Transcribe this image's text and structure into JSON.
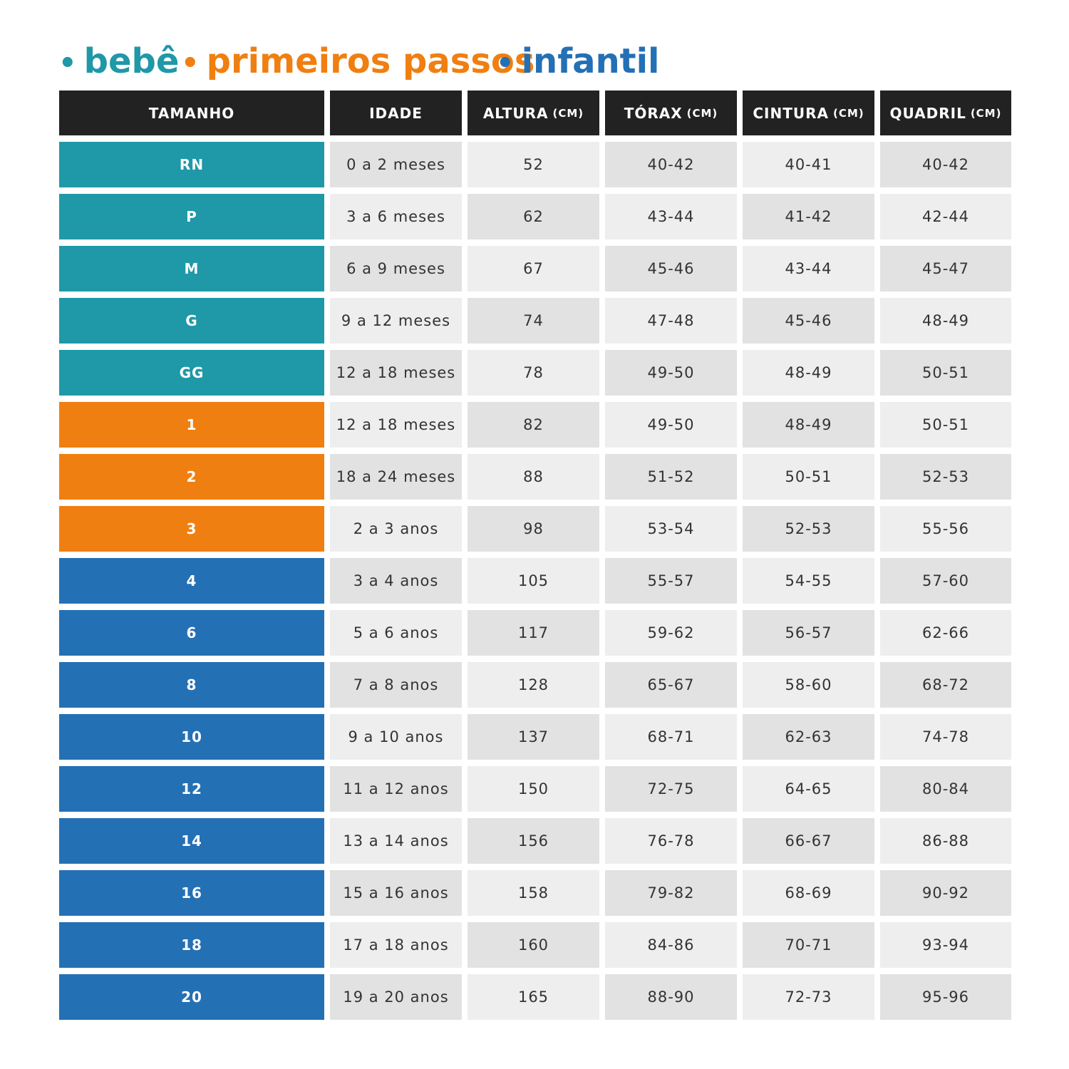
{
  "groups": [
    {
      "name": "bebê",
      "color": "#1f98a8",
      "rows": [
        [
          "RN",
          "0 a 2 meses",
          "52",
          "40-42",
          "40-41",
          "40-42"
        ],
        [
          "P",
          "3 a 6 meses",
          "62",
          "43-44",
          "41-42",
          "42-44"
        ],
        [
          "M",
          "6 a 9 meses",
          "67",
          "45-46",
          "43-44",
          "45-47"
        ],
        [
          "G",
          "9 a 12 meses",
          "74",
          "47-48",
          "45-46",
          "48-49"
        ],
        [
          "GG",
          "12 a 18 meses",
          "78",
          "49-50",
          "48-49",
          "50-51"
        ]
      ]
    },
    {
      "name": "primeiros passos",
      "color": "#f07f11",
      "rows": [
        [
          "1",
          "12 a 18 meses",
          "82",
          "49-50",
          "48-49",
          "50-51"
        ],
        [
          "2",
          "18 a 24 meses",
          "88",
          "51-52",
          "50-51",
          "52-53"
        ],
        [
          "3",
          "2 a 3 anos",
          "98",
          "53-54",
          "52-53",
          "55-56"
        ]
      ]
    },
    {
      "name": "infantil",
      "color": "#2470b5",
      "rows": [
        [
          "4",
          "3 a 4 anos",
          "105",
          "55-57",
          "54-55",
          "57-60"
        ],
        [
          "6",
          "5 a 6 anos",
          "117",
          "59-62",
          "56-57",
          "62-66"
        ],
        [
          "8",
          "7 a 8 anos",
          "128",
          "65-67",
          "58-60",
          "68-72"
        ],
        [
          "10",
          "9 a 10 anos",
          "137",
          "68-71",
          "62-63",
          "74-78"
        ],
        [
          "12",
          "11 a 12 anos",
          "150",
          "72-75",
          "64-65",
          "80-84"
        ],
        [
          "14",
          "13 a 14 anos",
          "156",
          "76-78",
          "66-67",
          "86-88"
        ],
        [
          "16",
          "15 a 16 anos",
          "158",
          "79-82",
          "68-69",
          "90-92"
        ],
        [
          "18",
          "17 a 18 anos",
          "160",
          "84-86",
          "70-71",
          "93-94"
        ],
        [
          "20",
          "19 a 20 anos",
          "165",
          "88-90",
          "72-73",
          "95-96"
        ]
      ]
    }
  ],
  "header": [
    {
      "label": "TAMANHO"
    },
    {
      "label": "IDADE"
    },
    {
      "label": "ALTURA",
      "unit": "(CM)"
    },
    {
      "label": "TÓRAX",
      "unit": "(CM)"
    },
    {
      "label": "CINTURA",
      "unit": "(CM)"
    },
    {
      "label": "QUADRIL",
      "unit": "(CM)"
    }
  ]
}
